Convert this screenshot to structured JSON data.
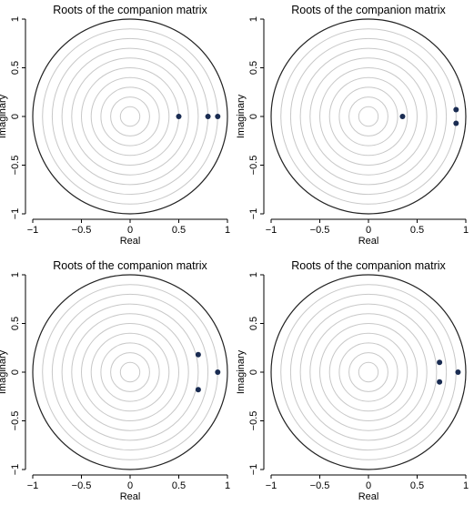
{
  "colors": {
    "point": "#1a2c52",
    "outer_circle": "#222222",
    "inner_circle": "#c8c8c8",
    "axis": "#000000"
  },
  "chart_data": [
    {
      "type": "scatter",
      "title": "Roots of the companion matrix",
      "xlabel": "Real",
      "ylabel": "Imaginary",
      "xlim": [
        -1,
        1
      ],
      "ylim": [
        -1,
        1
      ],
      "xticks": [
        "−1",
        "−0.5",
        "0",
        "0.5",
        "1"
      ],
      "yticks": [
        "−1",
        "−0.5",
        "0",
        "0.5",
        "1"
      ],
      "grid": "concentric circles at radii 0.1–0.9",
      "unit_circle": true,
      "points": [
        {
          "x": 0.5,
          "y": 0
        },
        {
          "x": 0.8,
          "y": 0
        },
        {
          "x": 0.9,
          "y": 0
        }
      ]
    },
    {
      "type": "scatter",
      "title": "Roots of the companion matrix",
      "xlabel": "Real",
      "ylabel": "Imaginary",
      "xlim": [
        -1,
        1
      ],
      "ylim": [
        -1,
        1
      ],
      "xticks": [
        "−1",
        "−0.5",
        "0",
        "0.5",
        "1"
      ],
      "yticks": [
        "−1",
        "−0.5",
        "0",
        "0.5",
        "1"
      ],
      "grid": "concentric circles at radii 0.1–0.9",
      "unit_circle": true,
      "points": [
        {
          "x": 0.35,
          "y": 0
        },
        {
          "x": 0.9,
          "y": 0.07
        },
        {
          "x": 0.9,
          "y": -0.07
        }
      ]
    },
    {
      "type": "scatter",
      "title": "Roots of the companion matrix",
      "xlabel": "Real",
      "ylabel": "Imaginary",
      "xlim": [
        -1,
        1
      ],
      "ylim": [
        -1,
        1
      ],
      "xticks": [
        "−1",
        "−0.5",
        "0",
        "0.5",
        "1"
      ],
      "yticks": [
        "−1",
        "−0.5",
        "0",
        "0.5",
        "1"
      ],
      "grid": "concentric circles at radii 0.1–0.9",
      "unit_circle": true,
      "points": [
        {
          "x": 0.7,
          "y": 0.18
        },
        {
          "x": 0.7,
          "y": -0.18
        },
        {
          "x": 0.9,
          "y": 0
        }
      ]
    },
    {
      "type": "scatter",
      "title": "Roots of the companion matrix",
      "xlabel": "Real",
      "ylabel": "Imaginary",
      "xlim": [
        -1,
        1
      ],
      "ylim": [
        -1,
        1
      ],
      "xticks": [
        "−1",
        "−0.5",
        "0",
        "0.5",
        "1"
      ],
      "yticks": [
        "−1",
        "−0.5",
        "0",
        "0.5",
        "1"
      ],
      "grid": "concentric circles at radii 0.1–0.9",
      "unit_circle": true,
      "points": [
        {
          "x": 0.73,
          "y": 0.1
        },
        {
          "x": 0.73,
          "y": -0.1
        },
        {
          "x": 0.92,
          "y": 0
        }
      ]
    }
  ]
}
